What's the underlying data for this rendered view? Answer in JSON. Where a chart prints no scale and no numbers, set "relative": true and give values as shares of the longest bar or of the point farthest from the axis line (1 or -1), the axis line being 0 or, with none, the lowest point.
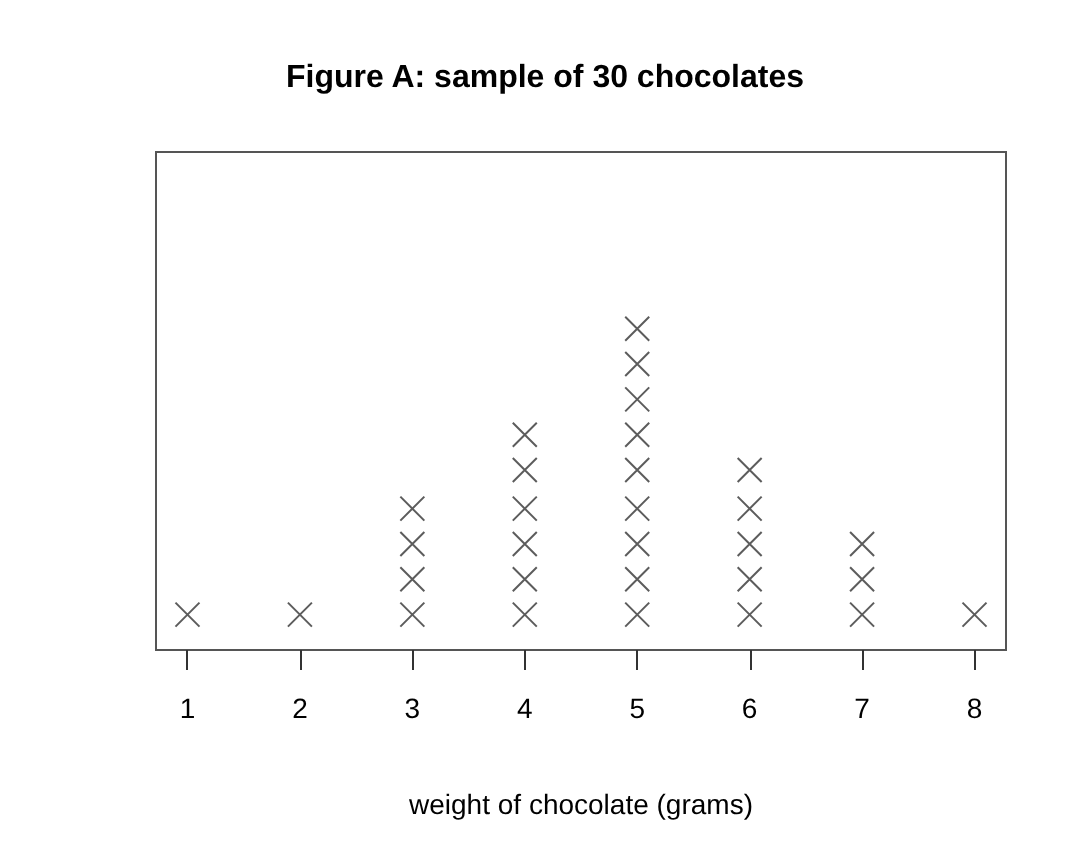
{
  "chart_data": {
    "type": "scatter",
    "title": "Figure A: sample of 30 chocolates",
    "xlabel": "weight of chocolate (grams)",
    "relative": true,
    "series": [
      {
        "color": "#333333",
        "x": [
          1,
          2,
          3,
          3,
          3,
          3,
          4,
          4,
          4,
          4,
          4,
          4,
          5,
          5,
          5,
          5,
          5,
          5,
          5,
          5,
          5,
          6,
          6,
          6,
          6,
          6,
          7,
          7,
          7,
          8
        ],
        "values": [
          0.11,
          0.11,
          0.11,
          0.22,
          0.33,
          0.44,
          0.11,
          0.22,
          0.33,
          0.44,
          0.56,
          0.67,
          0.11,
          0.22,
          0.33,
          0.44,
          0.56,
          0.67,
          0.78,
          0.89,
          1,
          0.11,
          0.22,
          0.33,
          0.44,
          0.56,
          0.11,
          0.22,
          0.33,
          0.11
        ]
      }
    ],
    "xlim": [
      0.72,
      8.28
    ],
    "xticks": [
      1,
      2,
      3,
      4,
      5,
      6,
      7,
      8
    ],
    "marker": "cross"
  }
}
